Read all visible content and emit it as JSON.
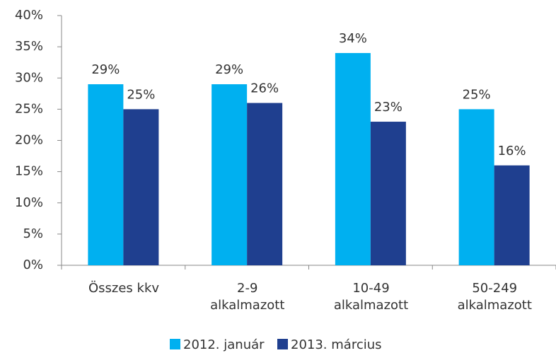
{
  "chart_data": {
    "type": "bar",
    "categories": [
      "Összes kkv",
      "2-9\nalkalmazott",
      "10-49\nalkalmazott",
      "50-249\nalkalmazott"
    ],
    "series": [
      {
        "name": "2012. január",
        "color": "#00b0f0",
        "values": [
          29,
          29,
          34,
          25
        ],
        "value_labels": [
          "29%",
          "29%",
          "34%",
          "25%"
        ]
      },
      {
        "name": "2013. március",
        "color": "#1f3f8f",
        "values": [
          25,
          26,
          23,
          16
        ],
        "value_labels": [
          "25%",
          "26%",
          "23%",
          "16%"
        ]
      }
    ],
    "ylim": [
      0,
      40
    ],
    "yticks": [
      {
        "value": 0,
        "label": "0%"
      },
      {
        "value": 5,
        "label": "5%"
      },
      {
        "value": 10,
        "label": "10%"
      },
      {
        "value": 15,
        "label": "15%"
      },
      {
        "value": 20,
        "label": "20%"
      },
      {
        "value": 25,
        "label": "25%"
      },
      {
        "value": 30,
        "label": "30%"
      },
      {
        "value": 35,
        "label": "35%"
      },
      {
        "value": 40,
        "label": "40%"
      }
    ],
    "grid": false,
    "legend": "bottom"
  }
}
